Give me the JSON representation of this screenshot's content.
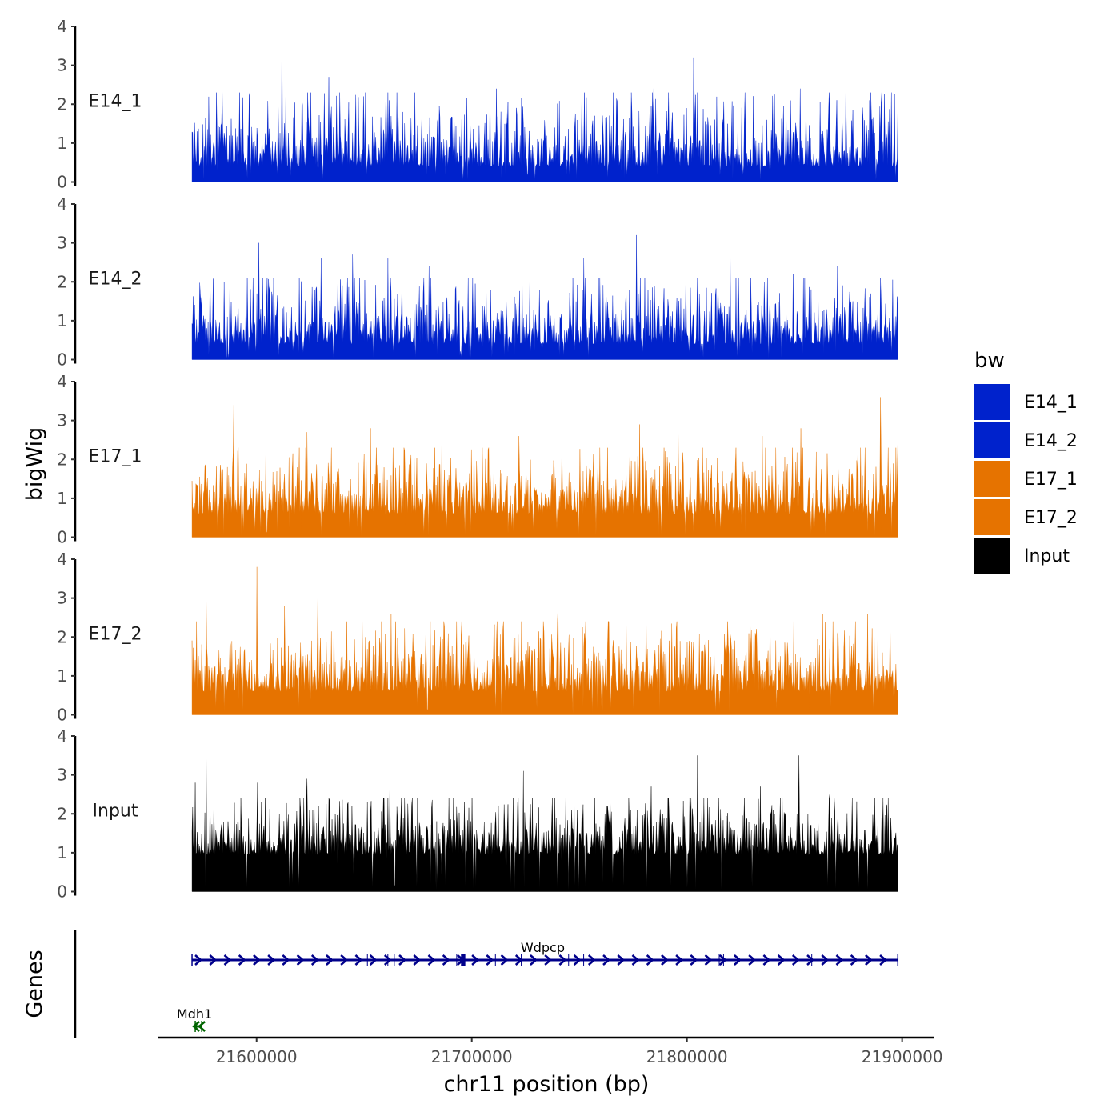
{
  "chart_data": {
    "type": "area",
    "chromosome": "chr11",
    "xlabel": "chr11 position (bp)",
    "ylabel": "bigWig",
    "genes_label": "Genes",
    "xlim": [
      21554000,
      21915000
    ],
    "x_range_data": [
      21570000,
      21898000
    ],
    "x_ticks": [
      21600000,
      21700000,
      21800000,
      21900000
    ],
    "x_tick_labels": [
      "21600000",
      "21700000",
      "21800000",
      "21900000"
    ],
    "ylim": [
      0,
      4
    ],
    "y_ticks": [
      0,
      1,
      2,
      3,
      4
    ],
    "y_tick_labels": [
      "0",
      "1",
      "2",
      "3",
      "4"
    ],
    "legend": {
      "title": "bw",
      "position": "right",
      "entries": [
        {
          "label": "E14_1",
          "color": "#0022CC"
        },
        {
          "label": "E14_2",
          "color": "#0022CC"
        },
        {
          "label": "E17_1",
          "color": "#E67300"
        },
        {
          "label": "E17_2",
          "color": "#E67300"
        },
        {
          "label": "Input",
          "color": "#000000"
        }
      ]
    },
    "tracks": [
      {
        "name": "E14_1",
        "color": "#0022CC",
        "baseline": 0.4,
        "spread": 0.75,
        "max_typical": 2.3,
        "peaks": [
          [
            21611800,
            3.8
          ],
          [
            21597000,
            2.3
          ],
          [
            21633500,
            2.7
          ],
          [
            21660000,
            2.4
          ],
          [
            21711500,
            2.4
          ],
          [
            21774000,
            2.3
          ],
          [
            21784500,
            2.4
          ],
          [
            21803000,
            3.2
          ],
          [
            21852500,
            2.4
          ],
          [
            21885000,
            2.1
          ],
          [
            21898000,
            1.8
          ]
        ]
      },
      {
        "name": "E14_2",
        "color": "#0022CC",
        "baseline": 0.4,
        "spread": 0.75,
        "max_typical": 2.1,
        "peaks": [
          [
            21601000,
            3.0
          ],
          [
            21630000,
            2.6
          ],
          [
            21644500,
            2.7
          ],
          [
            21661000,
            2.6
          ],
          [
            21680000,
            2.4
          ],
          [
            21752000,
            2.6
          ],
          [
            21776500,
            3.2
          ],
          [
            21820000,
            2.6
          ],
          [
            21849500,
            2.2
          ],
          [
            21870000,
            2.4
          ],
          [
            21890000,
            2.1
          ]
        ]
      },
      {
        "name": "E17_1",
        "color": "#E67300",
        "baseline": 0.6,
        "spread": 0.7,
        "max_typical": 2.3,
        "peaks": [
          [
            21589500,
            3.4
          ],
          [
            21623500,
            2.7
          ],
          [
            21653000,
            2.8
          ],
          [
            21686000,
            2.5
          ],
          [
            21722000,
            2.6
          ],
          [
            21778000,
            2.9
          ],
          [
            21796000,
            2.7
          ],
          [
            21835000,
            2.6
          ],
          [
            21853000,
            2.8
          ],
          [
            21890000,
            3.6
          ],
          [
            21898000,
            2.4
          ]
        ]
      },
      {
        "name": "E17_2",
        "color": "#E67300",
        "baseline": 0.6,
        "spread": 0.7,
        "max_typical": 2.4,
        "peaks": [
          [
            21576500,
            3.0
          ],
          [
            21600000,
            3.8
          ],
          [
            21613000,
            2.8
          ],
          [
            21628500,
            3.2
          ],
          [
            21662500,
            2.6
          ],
          [
            21693000,
            2.4
          ],
          [
            21740000,
            2.8
          ],
          [
            21781000,
            2.6
          ],
          [
            21819000,
            2.4
          ],
          [
            21863000,
            2.6
          ],
          [
            21884000,
            2.6
          ]
        ]
      },
      {
        "name": "Input",
        "color": "#000000",
        "baseline": 0.95,
        "spread": 0.65,
        "max_typical": 2.4,
        "peaks": [
          [
            21576500,
            3.6
          ],
          [
            21571500,
            2.8
          ],
          [
            21600500,
            2.8
          ],
          [
            21623500,
            2.9
          ],
          [
            21662000,
            2.7
          ],
          [
            21724000,
            3.1
          ],
          [
            21783500,
            2.7
          ],
          [
            21805000,
            3.5
          ],
          [
            21834000,
            2.7
          ],
          [
            21852000,
            3.5
          ],
          [
            21866500,
            2.5
          ]
        ]
      }
    ],
    "genes": [
      {
        "name": "Wdpcp",
        "start": 21570000,
        "end": 21898000,
        "strand": "+",
        "color": "#00008B",
        "row": 1,
        "thick_exon": [
          21695000,
          21697000
        ],
        "exon_marks": [
          21651500,
          21661000,
          21664000,
          21693000,
          21711000,
          21723000,
          21745000,
          21752000,
          21815000,
          21817000,
          21858000
        ]
      },
      {
        "name": "Mdh1",
        "start": 21571500,
        "end": 21574500,
        "strand": "-",
        "color": "#006400",
        "row": 2
      }
    ]
  }
}
